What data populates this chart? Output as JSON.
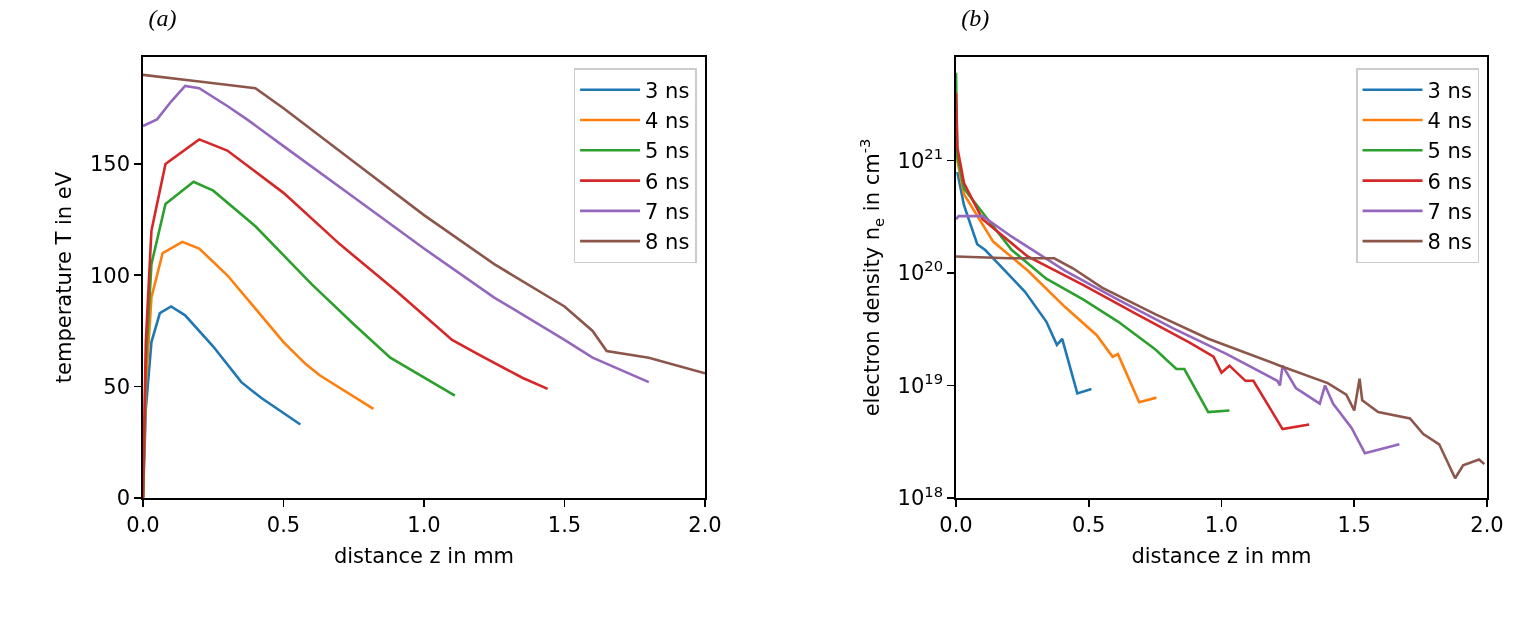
{
  "chart_data": [
    {
      "type": "line",
      "title": "(a)",
      "xlabel": "distance z in mm",
      "ylabel": "temperature T in eV",
      "xlim": [
        0,
        2
      ],
      "ylim": [
        0,
        198
      ],
      "xticks": [
        {
          "value": 0,
          "label": "0.0"
        },
        {
          "value": 0.5,
          "label": "0.5"
        },
        {
          "value": 1,
          "label": "1.0"
        },
        {
          "value": 1.5,
          "label": "1.5"
        },
        {
          "value": 2,
          "label": "2.0"
        }
      ],
      "yticks": [
        0,
        50,
        100,
        150
      ],
      "grid": false,
      "legend": "top right",
      "line_style": "solid",
      "marker": "none",
      "series": [
        {
          "name": "3 ns",
          "color": "#1f77b4",
          "x": [
            0,
            0.01,
            0.03,
            0.06,
            0.1,
            0.15,
            0.25,
            0.35,
            0.42,
            0.56
          ],
          "values": [
            0,
            40,
            70,
            83,
            86,
            82,
            68,
            52,
            45,
            33
          ]
        },
        {
          "name": "4 ns",
          "color": "#ff7f0e",
          "x": [
            0,
            0.01,
            0.03,
            0.07,
            0.14,
            0.2,
            0.3,
            0.4,
            0.5,
            0.58,
            0.63,
            0.82
          ],
          "values": [
            0,
            50,
            90,
            110,
            115,
            112,
            100,
            85,
            70,
            60,
            55,
            40
          ]
        },
        {
          "name": "5 ns",
          "color": "#2ca02c",
          "x": [
            0,
            0.01,
            0.03,
            0.08,
            0.18,
            0.25,
            0.4,
            0.6,
            0.75,
            0.88,
            1.11
          ],
          "values": [
            0,
            60,
            105,
            132,
            142,
            138,
            122,
            96,
            78,
            63,
            46
          ]
        },
        {
          "name": "6 ns",
          "color": "#d62728",
          "x": [
            0,
            0.01,
            0.03,
            0.08,
            0.2,
            0.3,
            0.5,
            0.7,
            0.9,
            1.1,
            1.2,
            1.35,
            1.44
          ],
          "values": [
            0,
            70,
            120,
            150,
            161,
            156,
            137,
            114,
            93,
            71,
            64,
            54,
            49
          ]
        },
        {
          "name": "7 ns",
          "color": "#9467bd",
          "x": [
            0,
            0.05,
            0.1,
            0.15,
            0.2,
            0.3,
            0.37,
            0.5,
            0.75,
            1.0,
            1.25,
            1.5,
            1.6,
            1.8
          ],
          "values": [
            167,
            170,
            178,
            185,
            184,
            176,
            170,
            158,
            135,
            112,
            90,
            71,
            63,
            52
          ]
        },
        {
          "name": "8 ns",
          "color": "#8c564b",
          "x": [
            0,
            0.2,
            0.4,
            0.5,
            0.75,
            1.0,
            1.25,
            1.5,
            1.6,
            1.65,
            1.8,
            2.0
          ],
          "values": [
            190,
            187,
            184,
            175,
            151,
            127,
            105,
            86,
            75,
            66,
            63,
            56
          ]
        }
      ]
    },
    {
      "type": "line",
      "title": "(b)",
      "xlabel": "distance z in mm",
      "ylabel": "electron density n$_{e}$ in cm$^{-3}$",
      "log": "y",
      "xlim": [
        0,
        2
      ],
      "ylim": [
        1e+18,
        8.3e+21
      ],
      "xticks": [
        {
          "value": 0,
          "label": "0.0"
        },
        {
          "value": 0.5,
          "label": "0.5"
        },
        {
          "value": 1,
          "label": "1.0"
        },
        {
          "value": 1.5,
          "label": "1.5"
        },
        {
          "value": 2,
          "label": "2.0"
        }
      ],
      "yticks": [
        {
          "value": 1e+18,
          "label": "10$^{18}$"
        },
        {
          "value": 1e+19,
          "label": "10$^{19}$"
        },
        {
          "value": 1e+20,
          "label": "10$^{20}$"
        },
        {
          "value": 1e+21,
          "label": "10$^{21}$"
        }
      ],
      "grid": false,
      "legend": "top right",
      "line_style": "solid",
      "marker": "none",
      "series": [
        {
          "name": "3 ns",
          "color": "#1f77b4",
          "x": [
            0.005,
            0.03,
            0.08,
            0.11,
            0.26,
            0.34,
            0.38,
            0.4,
            0.457,
            0.51
          ],
          "values": [
            7.9e+20,
            4e+20,
            1.8e+20,
            1.6e+20,
            6.8e+19,
            3.7e+19,
            2.3e+19,
            2.6e+19,
            8.5e+18,
            9.3e+18
          ]
        },
        {
          "name": "4 ns",
          "color": "#ff7f0e",
          "x": [
            0,
            0.005,
            0.03,
            0.14,
            0.27,
            0.41,
            0.53,
            0.59,
            0.61,
            0.69,
            0.755
          ],
          "values": [
            2.5e+21,
            1e+21,
            5e+20,
            1.9e+20,
            1.05e+20,
            5e+19,
            2.8e+19,
            1.8e+19,
            1.9e+19,
            7.1e+18,
            7.8e+18
          ]
        },
        {
          "name": "5 ns",
          "color": "#2ca02c",
          "x": [
            0,
            0.005,
            0.03,
            0.21,
            0.34,
            0.48,
            0.61,
            0.75,
            0.83,
            0.86,
            0.95,
            1.03
          ],
          "values": [
            6e+21,
            1.1e+21,
            5.6e+20,
            1.6e+20,
            8.9e+19,
            5.8e+19,
            3.7e+19,
            2.1e+19,
            1.4e+19,
            1.4e+19,
            5.8e+18,
            6e+18
          ]
        },
        {
          "name": "6 ns",
          "color": "#d62728",
          "x": [
            0,
            0.005,
            0.03,
            0.1,
            0.27,
            0.48,
            0.68,
            0.88,
            0.97,
            1.0,
            1.03,
            1.09,
            1.12,
            1.23,
            1.33
          ],
          "values": [
            4e+21,
            1.3e+21,
            6.3e+20,
            3e+20,
            1.4e+20,
            7.8e+19,
            4.3e+19,
            2.4e+19,
            1.8e+19,
            1.3e+19,
            1.5e+19,
            1.1e+19,
            1.1e+19,
            4.1e+18,
            4.5e+18
          ]
        },
        {
          "name": "7 ns",
          "color": "#9467bd",
          "x": [
            0,
            0.01,
            0.1,
            0.21,
            0.41,
            0.61,
            0.82,
            1.02,
            1.21,
            1.22,
            1.23,
            1.28,
            1.37,
            1.39,
            1.42,
            1.49,
            1.54,
            1.67
          ],
          "values": [
            3e+20,
            3.2e+20,
            3.2e+20,
            2.1e+20,
            1.05e+20,
            5.8e+19,
            3.2e+19,
            1.9e+19,
            1.1e+19,
            1e+19,
            1.5e+19,
            9.5e+18,
            6.9e+18,
            1e+19,
            6.9e+18,
            4.2e+18,
            2.5e+18,
            3e+18
          ]
        },
        {
          "name": "8 ns",
          "color": "#8c564b",
          "x": [
            0,
            0.2,
            0.37,
            0.44,
            0.55,
            0.75,
            0.95,
            1.22,
            1.4,
            1.47,
            1.5,
            1.52,
            1.53,
            1.59,
            1.71,
            1.76,
            1.82,
            1.88,
            1.91,
            1.97,
            1.99
          ],
          "values": [
            1.4e+20,
            1.35e+20,
            1.35e+20,
            1.1e+20,
            7.4e+19,
            4.3e+19,
            2.6e+19,
            1.5e+19,
            1.05e+19,
            8.3e+18,
            6e+18,
            1.15e+19,
            7.4e+18,
            5.8e+18,
            5.1e+18,
            3.7e+18,
            3e+18,
            1.5e+18,
            1.95e+18,
            2.2e+18,
            2e+18
          ]
        }
      ]
    }
  ]
}
